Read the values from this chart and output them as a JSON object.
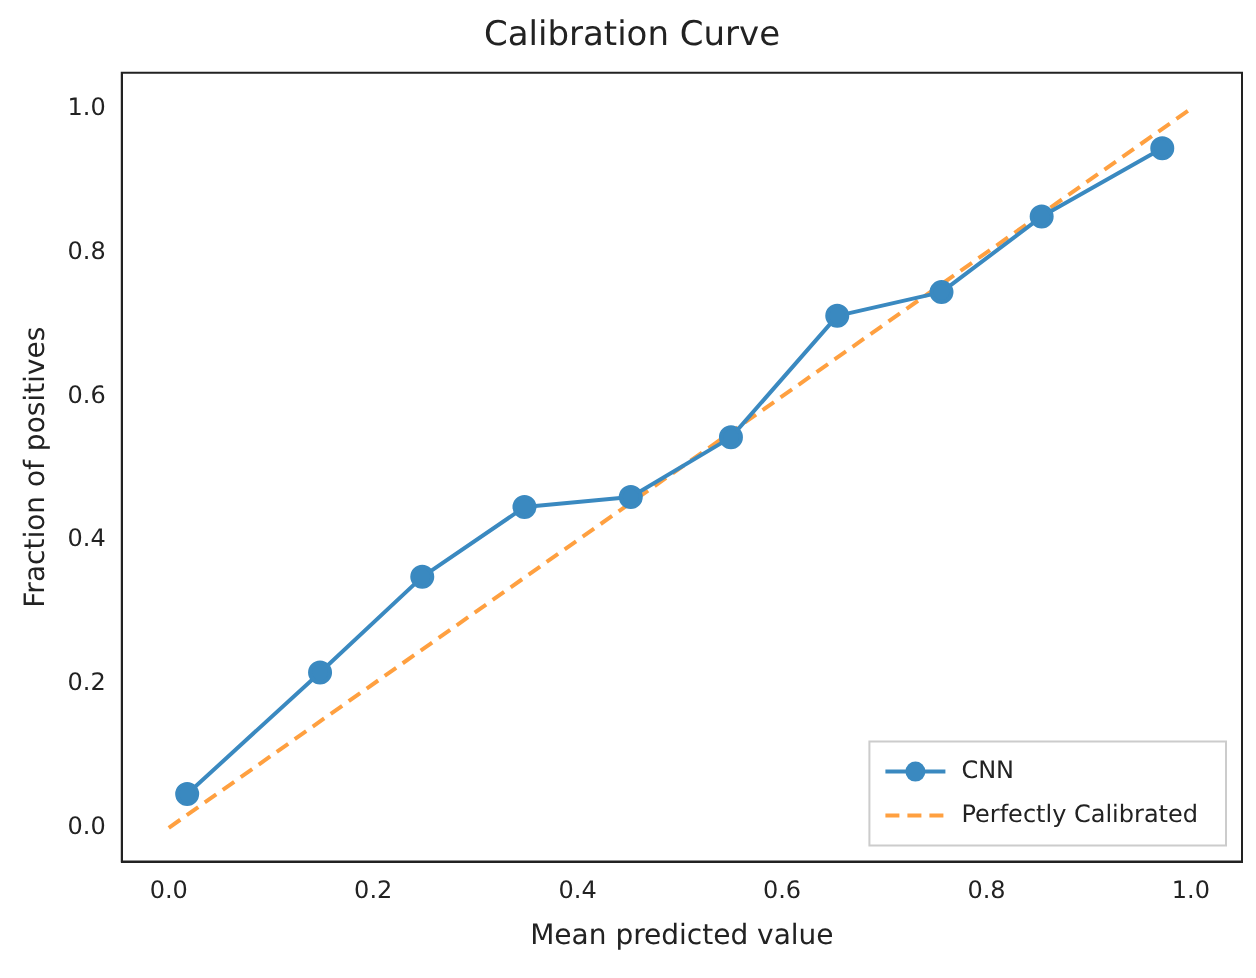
{
  "chart_data": {
    "type": "line",
    "title": "Calibration Curve",
    "xlabel": "Mean predicted value",
    "ylabel": "Fraction of positives",
    "xlim": [
      -0.046,
      1.05
    ],
    "ylim": [
      -0.047,
      1.05
    ],
    "xticks": [
      {
        "value": 0,
        "label": "0.0"
      },
      0.2,
      0.4,
      0.6,
      0.8,
      {
        "value": 1,
        "label": "1.0"
      }
    ],
    "yticks": [
      {
        "value": 0,
        "label": "0.0"
      },
      0.2,
      0.4,
      0.6,
      0.8,
      {
        "value": 1,
        "label": "1.0"
      }
    ],
    "grid": false,
    "legend": "bottom right",
    "series": [
      {
        "name": "CNN",
        "color": "#3a89c0",
        "marker": "circle",
        "line_style": "solid",
        "x": [
          0.018,
          0.148,
          0.248,
          0.348,
          0.452,
          0.55,
          0.654,
          0.756,
          0.854,
          0.972
        ],
        "values": [
          0.047,
          0.216,
          0.349,
          0.446,
          0.46,
          0.543,
          0.712,
          0.745,
          0.85,
          0.945
        ]
      },
      {
        "name": "Perfectly Calibrated",
        "color": "#ffa040",
        "marker": "none",
        "line_style": "dashed",
        "x": [
          0,
          1
        ],
        "values": [
          0,
          1
        ]
      }
    ]
  }
}
